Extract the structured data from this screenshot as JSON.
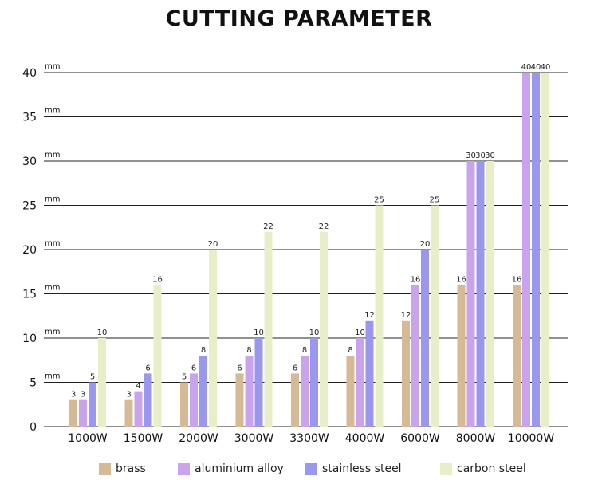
{
  "chart_data": {
    "type": "bar",
    "title": "CUTTING PARAMETER",
    "categories": [
      "1000W",
      "1500W",
      "2000W",
      "3000W",
      "3300W",
      "4000W",
      "6000W",
      "8000W",
      "10000W"
    ],
    "series": [
      {
        "name": "brass",
        "color": "#d6b995",
        "values": [
          3,
          3,
          5,
          6,
          6,
          8,
          12,
          16,
          16
        ]
      },
      {
        "name": "aluminium alloy",
        "color": "#c9a3ec",
        "values": [
          3,
          4,
          6,
          8,
          8,
          10,
          16,
          30,
          40
        ]
      },
      {
        "name": "stainless steel",
        "color": "#9a97ee",
        "values": [
          5,
          6,
          8,
          10,
          10,
          12,
          20,
          30,
          40
        ]
      },
      {
        "name": "carbon steel",
        "color": "#e8efc8",
        "values": [
          10,
          16,
          20,
          22,
          22,
          25,
          25,
          30,
          40
        ]
      }
    ],
    "yticks": [
      "0",
      "5",
      "10",
      "15",
      "20",
      "25",
      "30",
      "35",
      "40"
    ],
    "yunit": "mm",
    "ylim": [
      0,
      40
    ],
    "grid": true,
    "legend": "bottom"
  }
}
